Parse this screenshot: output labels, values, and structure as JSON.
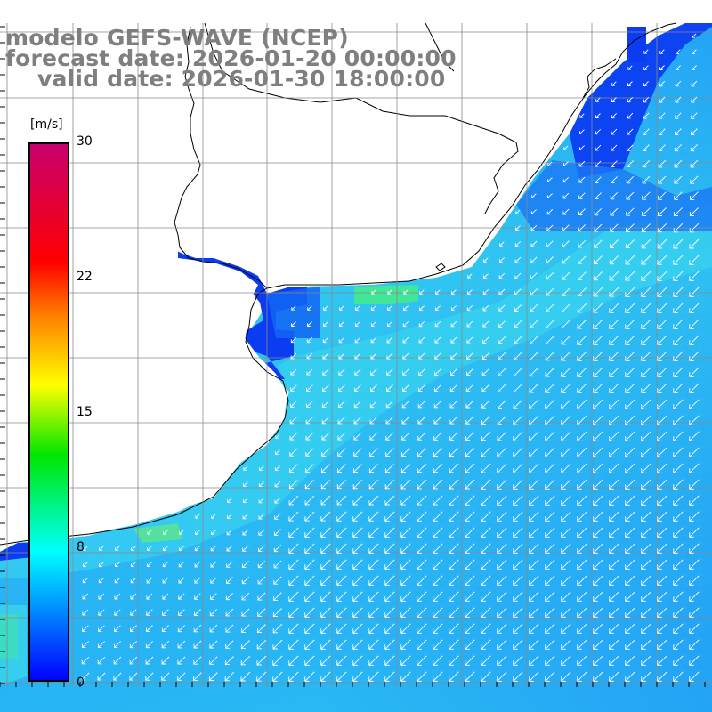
{
  "header": {
    "title": "modelo GEFS-WAVE (NCEP)",
    "forecast_date": "forecast date: 2026-01-20 00:00:00",
    "valid_date": "valid date: 2026-01-30 18:00:00"
  },
  "colorbar": {
    "unit": "[m/s]",
    "ticks": [
      "30",
      "22",
      "15",
      "8",
      "0"
    ],
    "colors": [
      "#c8006e",
      "#ff0000",
      "#ff7f00",
      "#ffff00",
      "#00e600",
      "#00ffff",
      "#0080ff",
      "#0000ff"
    ]
  },
  "map": {
    "land_color": "#ffffff",
    "coastline_color": "#000000",
    "grid_color": "#7f7f7f",
    "arrow_color": "#ffffff",
    "wind_direction": "from northeast",
    "field_colors": {
      "deep_blue": "#0a46f0",
      "blue": "#1e8cf5",
      "sky": "#28aaf5",
      "cyan": "#2dd2f0",
      "aqua": "#46ebe6",
      "green": "#3ce682"
    }
  }
}
